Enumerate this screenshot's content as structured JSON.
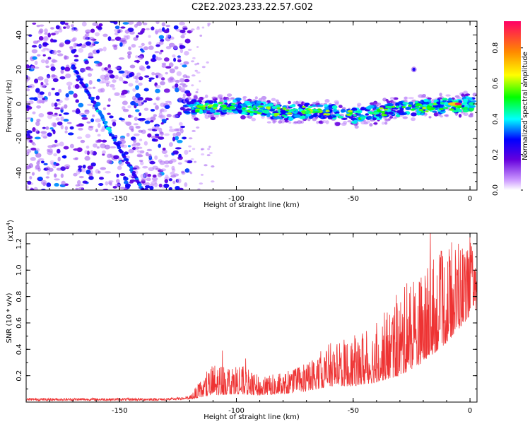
{
  "title": "C2E2.2023.233.22.57.G02",
  "chart_data": [
    {
      "type": "heatmap",
      "xlabel": "Height of straight line (km)",
      "ylabel": "Frequency (Hz)",
      "xlim": [
        -190,
        3
      ],
      "ylim": [
        -50,
        48
      ],
      "x_ticks": [
        -150,
        -100,
        -50,
        0
      ],
      "x_tick_labels": [
        "-150",
        "-100",
        "-50",
        "0"
      ],
      "y_ticks": [
        40,
        20,
        0,
        -20,
        -40
      ],
      "y_tick_labels": [
        "40",
        "20",
        "0",
        "-20",
        "-40"
      ],
      "colorbar": {
        "label": "Normalized spectral amplitude",
        "range": [
          0,
          0.95
        ],
        "ticks": [
          0.0,
          0.2,
          0.4,
          0.6,
          0.8
        ],
        "tick_labels": [
          "0.0",
          "0.2",
          "0.4",
          "0.6",
          "0.8"
        ],
        "colors": [
          "#ffffff",
          "#cc99ff",
          "#6600dd",
          "#0000ff",
          "#00ffff",
          "#00ff00",
          "#ffff00",
          "#ff8800",
          "#ff0066"
        ]
      },
      "features": {
        "noise_region_x": [
          -190,
          -120
        ],
        "diagonal_trace": {
          "x": [
            -170,
            -140
          ],
          "y": [
            22,
            -50
          ]
        },
        "main_band": {
          "x": [
            -120,
            -110,
            -100,
            -90,
            -80,
            -70,
            -60,
            -50,
            -40,
            -30,
            -20,
            -10,
            0
          ],
          "y": [
            -2,
            -2,
            -1,
            -3,
            -5,
            -4,
            -4,
            -7,
            -5,
            -3,
            -2,
            -1,
            0
          ]
        },
        "peak": {
          "x": -5,
          "y": 0,
          "amplitude": 0.95
        },
        "isolated_blob": {
          "x": -24,
          "y": 20
        }
      },
      "grid": false
    },
    {
      "type": "line",
      "xlabel": "Height of straight line (km)",
      "ylabel": "SNR (10 * v/v)",
      "y_multiplier": "(x10",
      "y_multiplier_exp": "4",
      "y_multiplier_close": ")",
      "xlim": [
        -190,
        3
      ],
      "ylim": [
        0,
        1.28
      ],
      "x_ticks": [
        -150,
        -100,
        -50,
        0
      ],
      "x_tick_labels": [
        "-150",
        "-100",
        "-50",
        "0"
      ],
      "y_ticks": [
        0.2,
        0.4,
        0.6,
        0.8,
        1.0,
        1.2
      ],
      "y_tick_labels": [
        "0.2",
        "0.4",
        "0.6",
        "0.8",
        "1.0",
        "1.2"
      ],
      "line_color": "#ee3333",
      "envelope": {
        "x": [
          -190,
          -130,
          -120,
          -110,
          -100,
          -90,
          -80,
          -70,
          -60,
          -50,
          -40,
          -30,
          -20,
          -10,
          0,
          3
        ],
        "y_max": [
          0.03,
          0.03,
          0.05,
          0.3,
          0.3,
          0.2,
          0.22,
          0.3,
          0.45,
          0.5,
          0.6,
          0.85,
          1.0,
          1.2,
          1.25,
          1.0
        ],
        "y_base": [
          0.01,
          0.01,
          0.02,
          0.05,
          0.06,
          0.05,
          0.06,
          0.08,
          0.12,
          0.12,
          0.15,
          0.2,
          0.3,
          0.45,
          0.65,
          0.7
        ]
      },
      "spikes": [
        {
          "x": -106,
          "y": 0.39
        },
        {
          "x": -96,
          "y": 0.33
        },
        {
          "x": -46,
          "y": 0.52
        },
        {
          "x": -40,
          "y": 0.6
        },
        {
          "x": -27,
          "y": 0.9
        },
        {
          "x": -17,
          "y": 1.28
        },
        {
          "x": -12,
          "y": 1.06
        },
        {
          "x": -5,
          "y": 1.2
        },
        {
          "x": 0,
          "y": 1.25
        }
      ],
      "grid": false
    }
  ]
}
